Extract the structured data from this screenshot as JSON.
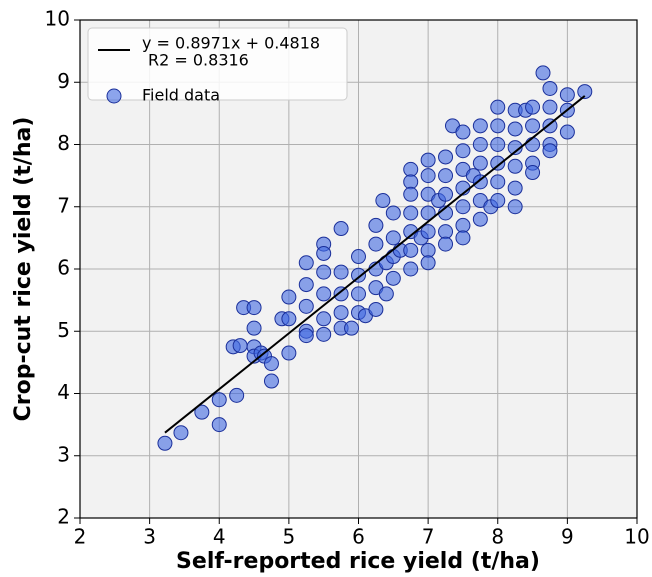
{
  "chart_data": {
    "type": "scatter",
    "xlabel": "Self-reported rice yield (t/ha)",
    "ylabel": "Crop-cut rice yield (t/ha)",
    "xlim": [
      2,
      10
    ],
    "ylim": [
      2,
      10
    ],
    "xticks": [
      2,
      3,
      4,
      5,
      6,
      7,
      8,
      9,
      10
    ],
    "yticks": [
      2,
      3,
      4,
      5,
      6,
      7,
      8,
      9,
      10
    ],
    "grid": true,
    "legend": "upper left",
    "legend_note": "R2 = 0.8316",
    "series": [
      {
        "name": "y = 0.8971x + 0.4818",
        "type": "line",
        "color": "#000000",
        "x": [
          3.22,
          9.25
        ],
        "values": [
          3.37,
          8.78
        ]
      },
      {
        "name": "Field data",
        "type": "scatter",
        "color": "#4169e1",
        "x": [
          3.22,
          3.45,
          3.75,
          4.0,
          4.0,
          4.25,
          4.2,
          4.3,
          4.35,
          4.5,
          4.5,
          4.5,
          4.5,
          4.6,
          4.65,
          4.75,
          4.75,
          4.9,
          5.0,
          5.0,
          5.0,
          5.25,
          5.25,
          5.25,
          5.25,
          5.25,
          5.5,
          5.5,
          5.5,
          5.5,
          5.5,
          5.5,
          5.75,
          5.75,
          5.75,
          5.75,
          5.75,
          5.9,
          6.0,
          6.0,
          6.0,
          6.0,
          6.1,
          6.25,
          6.25,
          6.25,
          6.25,
          6.25,
          6.35,
          6.4,
          6.4,
          6.5,
          6.5,
          6.5,
          6.5,
          6.6,
          6.75,
          6.75,
          6.75,
          6.75,
          6.75,
          6.75,
          6.75,
          6.9,
          7.0,
          7.0,
          7.0,
          7.0,
          7.0,
          7.0,
          7.0,
          7.15,
          7.25,
          7.25,
          7.25,
          7.25,
          7.25,
          7.25,
          7.35,
          7.5,
          7.5,
          7.5,
          7.5,
          7.5,
          7.5,
          7.5,
          7.65,
          7.75,
          7.75,
          7.75,
          7.75,
          7.75,
          7.75,
          7.9,
          8.0,
          8.0,
          8.0,
          8.0,
          8.0,
          8.0,
          8.25,
          8.25,
          8.25,
          8.25,
          8.25,
          8.25,
          8.4,
          8.5,
          8.5,
          8.5,
          8.5,
          8.5,
          8.65,
          8.75,
          8.75,
          8.75,
          8.75,
          8.75,
          9.0,
          9.0,
          9.0,
          9.25
        ],
        "values": [
          3.2,
          3.37,
          3.7,
          3.5,
          3.9,
          3.97,
          4.75,
          4.77,
          5.38,
          5.38,
          5.05,
          4.75,
          4.6,
          4.65,
          4.6,
          4.48,
          4.2,
          5.2,
          5.55,
          5.2,
          4.65,
          6.1,
          5.75,
          5.4,
          5.0,
          4.93,
          6.4,
          6.25,
          5.95,
          5.6,
          5.2,
          4.95,
          6.65,
          5.95,
          5.6,
          5.3,
          5.05,
          5.05,
          6.2,
          5.9,
          5.6,
          5.3,
          5.25,
          6.7,
          6.4,
          6.0,
          5.7,
          5.35,
          7.1,
          6.1,
          5.6,
          6.9,
          6.5,
          6.2,
          5.85,
          6.3,
          7.6,
          7.4,
          7.2,
          6.9,
          6.6,
          6.3,
          6.0,
          6.5,
          7.75,
          7.5,
          7.2,
          6.9,
          6.6,
          6.3,
          6.1,
          7.1,
          7.8,
          7.5,
          7.2,
          6.9,
          6.6,
          6.4,
          8.3,
          8.2,
          7.9,
          7.6,
          7.3,
          7.0,
          6.7,
          6.5,
          7.5,
          8.3,
          8.0,
          7.7,
          7.4,
          7.1,
          6.8,
          7.0,
          8.6,
          8.3,
          8.0,
          7.7,
          7.4,
          7.1,
          8.55,
          8.25,
          7.95,
          7.65,
          7.3,
          7.0,
          8.55,
          8.6,
          8.3,
          8.0,
          7.7,
          7.55,
          9.15,
          8.9,
          8.6,
          8.3,
          8.0,
          7.9,
          8.8,
          8.55,
          8.2,
          8.85
        ]
      }
    ]
  }
}
